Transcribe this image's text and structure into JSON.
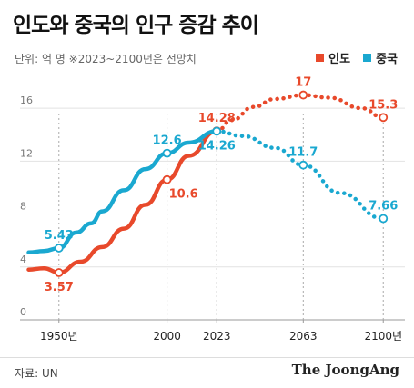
{
  "title": "인도와 중국의 인구 증감 추이",
  "subtitle": "단위: 억 명  ※2023~2100년은 전망치",
  "legend": [
    {
      "label": "인도",
      "color": "#e8492b"
    },
    {
      "label": "중국",
      "color": "#1aa8d0"
    }
  ],
  "source": "자료: UN",
  "brand": "The JoongAng",
  "chart_data": {
    "type": "line",
    "title": "인도와 중국의 인구 증감 추이",
    "ylabel": "",
    "xlabel": "",
    "ylim": [
      0,
      18
    ],
    "xlim": [
      1932,
      2110
    ],
    "yticks": [
      0,
      4,
      8,
      12,
      16
    ],
    "xticks": [
      {
        "value": 1950,
        "label": "1950년"
      },
      {
        "value": 2000,
        "label": "2000"
      },
      {
        "value": 2023,
        "label": "2023"
      },
      {
        "value": 2063,
        "label": "2063"
      },
      {
        "value": 2100,
        "label": "2100년"
      }
    ],
    "grid": true,
    "forecast_from": 2023,
    "series": [
      {
        "name": "인도",
        "color": "#e8492b",
        "points": [
          [
            1936,
            3.8
          ],
          [
            1943,
            3.9
          ],
          [
            1950,
            3.57
          ],
          [
            1960,
            4.4
          ],
          [
            1970,
            5.5
          ],
          [
            1980,
            6.9
          ],
          [
            1990,
            8.7
          ],
          [
            2000,
            10.6
          ],
          [
            2010,
            12.4
          ],
          [
            2023,
            14.28
          ],
          [
            2030,
            15.1
          ],
          [
            2040,
            16.1
          ],
          [
            2050,
            16.7
          ],
          [
            2063,
            17.0
          ],
          [
            2075,
            16.8
          ],
          [
            2090,
            16.0
          ],
          [
            2100,
            15.3
          ]
        ],
        "annotations": [
          {
            "x": 1950,
            "y": 3.57,
            "label": "3.57",
            "pos": "below"
          },
          {
            "x": 2000,
            "y": 10.6,
            "label": "10.6",
            "pos": "right-below"
          },
          {
            "x": 2023,
            "y": 14.28,
            "label": "14.28",
            "pos": "above"
          },
          {
            "x": 2063,
            "y": 17.0,
            "label": "17",
            "pos": "above"
          },
          {
            "x": 2100,
            "y": 15.3,
            "label": "15.3",
            "pos": "above"
          }
        ]
      },
      {
        "name": "중국",
        "color": "#1aa8d0",
        "points": [
          [
            1936,
            5.1
          ],
          [
            1943,
            5.2
          ],
          [
            1950,
            5.43
          ],
          [
            1958,
            6.6
          ],
          [
            1965,
            7.3
          ],
          [
            1970,
            8.2
          ],
          [
            1980,
            9.8
          ],
          [
            1990,
            11.4
          ],
          [
            2000,
            12.6
          ],
          [
            2010,
            13.4
          ],
          [
            2023,
            14.26
          ],
          [
            2035,
            13.9
          ],
          [
            2050,
            13.0
          ],
          [
            2063,
            11.7
          ],
          [
            2080,
            9.6
          ],
          [
            2100,
            7.66
          ]
        ],
        "annotations": [
          {
            "x": 1950,
            "y": 5.43,
            "label": "5.43",
            "pos": "above"
          },
          {
            "x": 2000,
            "y": 12.6,
            "label": "12.6",
            "pos": "above"
          },
          {
            "x": 2023,
            "y": 14.26,
            "label": "14.26",
            "pos": "below"
          },
          {
            "x": 2063,
            "y": 11.7,
            "label": "11.7",
            "pos": "above"
          },
          {
            "x": 2100,
            "y": 7.66,
            "label": "7.66",
            "pos": "above"
          }
        ]
      }
    ]
  }
}
